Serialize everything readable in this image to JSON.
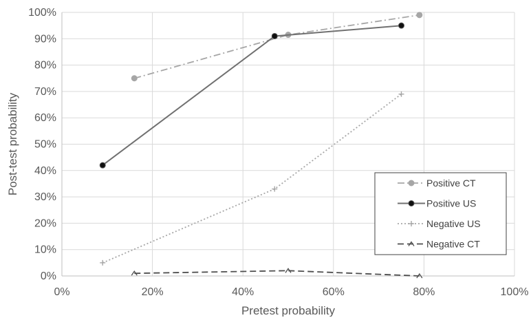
{
  "chart_data": {
    "type": "line",
    "xlabel": "Pretest probability",
    "ylabel": "Post-test probability",
    "xlim": [
      0,
      1
    ],
    "ylim": [
      0,
      1
    ],
    "x_ticks": [
      "0%",
      "20%",
      "40%",
      "60%",
      "80%",
      "100%"
    ],
    "y_ticks": [
      "0%",
      "10%",
      "20%",
      "30%",
      "40%",
      "50%",
      "60%",
      "70%",
      "80%",
      "90%",
      "100%"
    ],
    "grid": true,
    "legend_position": "right",
    "series": [
      {
        "name": "Positive CT",
        "x": [
          0.16,
          0.5,
          0.79
        ],
        "y": [
          0.75,
          0.915,
          0.99
        ],
        "color": "#a6a6a6",
        "dash": "dashdot",
        "marker": "circle"
      },
      {
        "name": "Positive US",
        "x": [
          0.09,
          0.47,
          0.75
        ],
        "y": [
          0.42,
          0.91,
          0.95
        ],
        "color": "#707070",
        "dash": "solid",
        "marker": "circle-dark"
      },
      {
        "name": "Negative US",
        "x": [
          0.09,
          0.47,
          0.75
        ],
        "y": [
          0.05,
          0.33,
          0.69
        ],
        "color": "#a6a6a6",
        "dash": "dotted",
        "marker": "plus"
      },
      {
        "name": "Negative CT",
        "x": [
          0.16,
          0.5,
          0.79
        ],
        "y": [
          0.01,
          0.02,
          0.0
        ],
        "color": "#4d4d4d",
        "dash": "dashed",
        "marker": "caret"
      }
    ]
  }
}
